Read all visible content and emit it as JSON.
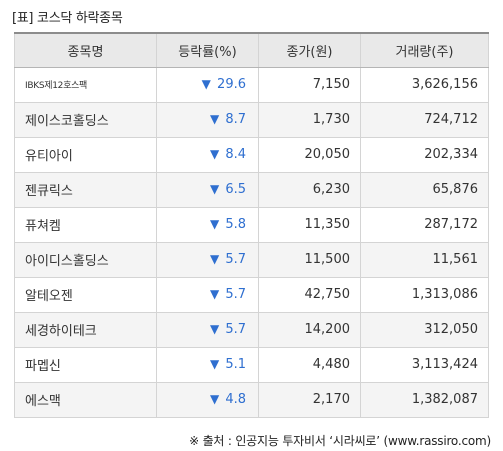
{
  "title": "[표] 코스닥 하락종목",
  "headers": {
    "name": "종목명",
    "rate": "등락률(%)",
    "close": "종가(원)",
    "volume": "거래량(주)"
  },
  "rows": [
    {
      "name": "IBKS제12호스팩",
      "arrow": "▼",
      "rate": "29.6",
      "close": "7,150",
      "volume": "3,626,156"
    },
    {
      "name": "제이스코홀딩스",
      "arrow": "▼",
      "rate": "8.7",
      "close": "1,730",
      "volume": "724,712"
    },
    {
      "name": "유티아이",
      "arrow": "▼",
      "rate": "8.4",
      "close": "20,050",
      "volume": "202,334"
    },
    {
      "name": "젠큐릭스",
      "arrow": "▼",
      "rate": "6.5",
      "close": "6,230",
      "volume": "65,876"
    },
    {
      "name": "퓨쳐켐",
      "arrow": "▼",
      "rate": "5.8",
      "close": "11,350",
      "volume": "287,172"
    },
    {
      "name": "아이디스홀딩스",
      "arrow": "▼",
      "rate": "5.7",
      "close": "11,500",
      "volume": "11,561"
    },
    {
      "name": "알테오젠",
      "arrow": "▼",
      "rate": "5.7",
      "close": "42,750",
      "volume": "1,313,086"
    },
    {
      "name": "세경하이테크",
      "arrow": "▼",
      "rate": "5.7",
      "close": "14,200",
      "volume": "312,050"
    },
    {
      "name": "파멥신",
      "arrow": "▼",
      "rate": "5.1",
      "close": "4,480",
      "volume": "3,113,424"
    },
    {
      "name": "에스맥",
      "arrow": "▼",
      "rate": "4.8",
      "close": "2,170",
      "volume": "1,382,087"
    }
  ],
  "source": "※ 출처 : 인공지능 투자비서 ‘시라씨로’ (www.rassiro.com)"
}
